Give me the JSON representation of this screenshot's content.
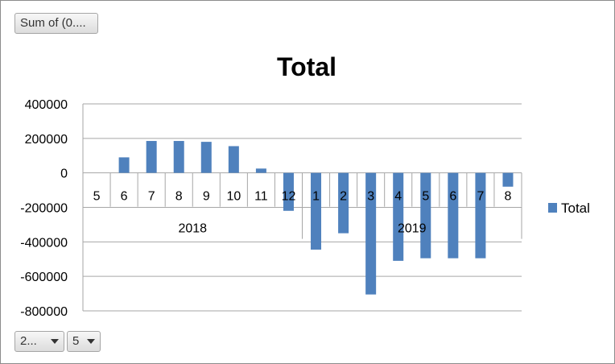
{
  "value_field_button": {
    "label": "Sum of  (0...."
  },
  "filter_buttons": [
    {
      "label": "2...",
      "icon": "dropdown-arrow-icon"
    },
    {
      "label": "5",
      "icon": "dropdown-arrow-icon"
    }
  ],
  "chart_data": {
    "type": "bar",
    "title": "Total",
    "xlabel": "",
    "ylabel": "",
    "ylim": [
      -800000,
      400000
    ],
    "yticks": [
      400000,
      200000,
      0,
      -200000,
      -400000,
      -600000,
      -800000
    ],
    "ytick_labels": [
      "400000",
      "200000",
      "0",
      "-200000",
      "-400000",
      "-600000",
      "-800000"
    ],
    "categories": [
      "5",
      "6",
      "7",
      "8",
      "9",
      "10",
      "11",
      "12",
      "1",
      "2",
      "3",
      "4",
      "5",
      "6",
      "7",
      "8"
    ],
    "groups": [
      {
        "label": "2018",
        "count": 8
      },
      {
        "label": "2019",
        "count": 8
      }
    ],
    "series": [
      {
        "name": "Total",
        "color": "#4f81bd",
        "values": [
          0,
          90000,
          185000,
          185000,
          180000,
          155000,
          25000,
          -220000,
          -445000,
          -350000,
          -705000,
          -510000,
          -495000,
          -495000,
          -495000,
          -80000
        ]
      }
    ],
    "legend": {
      "position": "right",
      "entries": [
        "Total"
      ]
    },
    "grid": true
  }
}
